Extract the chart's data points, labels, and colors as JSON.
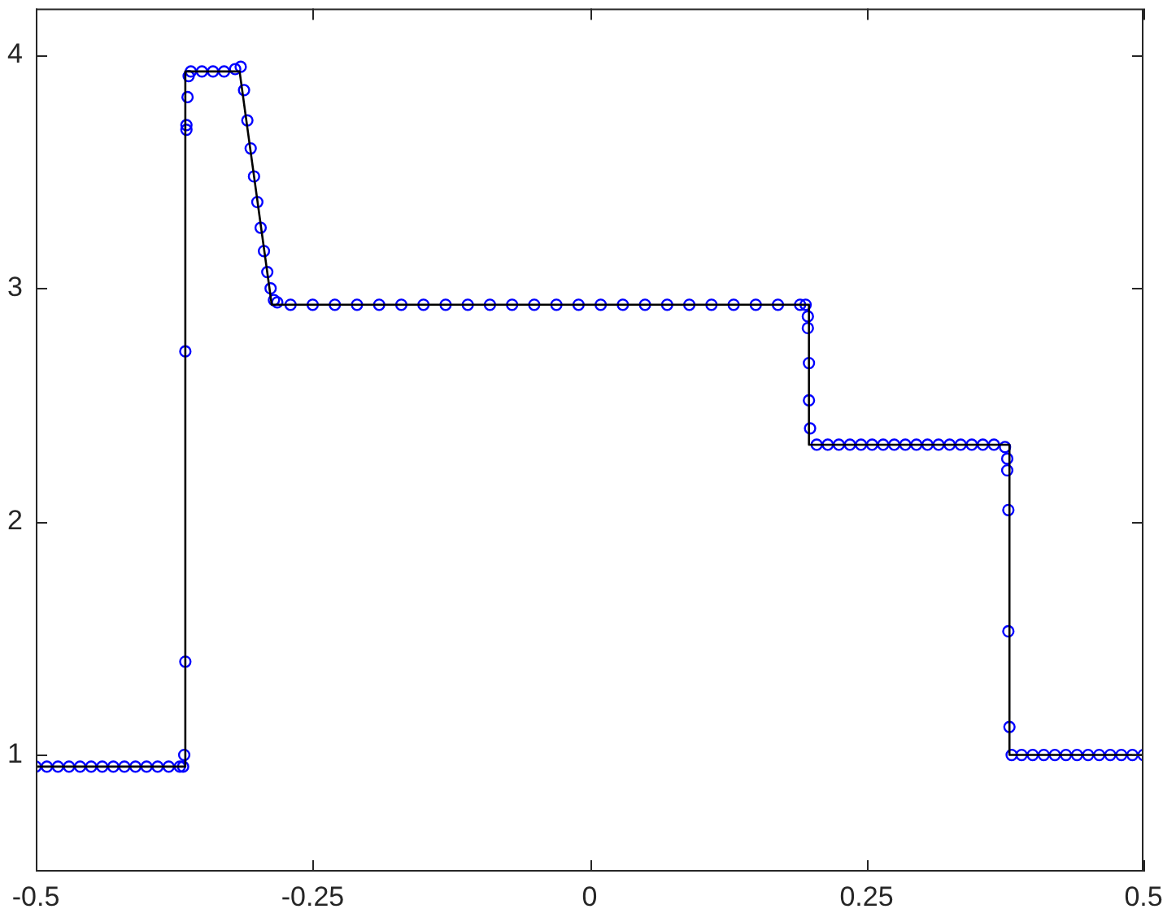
{
  "chart_data": {
    "type": "scatter",
    "xlim": [
      -0.5,
      0.5
    ],
    "ylim": [
      0.5,
      4.2
    ],
    "xticks": [
      -0.5,
      -0.25,
      0,
      0.25,
      0.5
    ],
    "yticks": [
      1,
      2,
      3,
      4
    ],
    "grid": false,
    "legend": false,
    "series": [
      {
        "type": "line",
        "color": "#000000",
        "marker": "none",
        "line_style": "solid",
        "x": [
          -0.5,
          -0.365,
          -0.365,
          -0.316,
          -0.287,
          0.198,
          0.198,
          0.379,
          0.379,
          0.5
        ],
        "values": [
          0.95,
          0.95,
          3.93,
          3.93,
          2.93,
          2.93,
          2.33,
          2.33,
          1.0,
          1.0
        ]
      },
      {
        "type": "scatter",
        "color": "#0000ff",
        "marker": "circle",
        "x": [
          -0.5,
          -0.49,
          -0.48,
          -0.47,
          -0.46,
          -0.45,
          -0.44,
          -0.43,
          -0.42,
          -0.41,
          -0.4,
          -0.39,
          -0.38,
          -0.37,
          -0.367,
          -0.366,
          -0.365,
          -0.365,
          -0.364,
          -0.364,
          -0.363,
          -0.362,
          -0.36,
          -0.35,
          -0.34,
          -0.33,
          -0.32,
          -0.315,
          -0.312,
          -0.309,
          -0.306,
          -0.303,
          -0.3,
          -0.297,
          -0.294,
          -0.291,
          -0.288,
          -0.285,
          -0.282,
          -0.27,
          -0.25,
          -0.23,
          -0.21,
          -0.19,
          -0.17,
          -0.15,
          -0.13,
          -0.11,
          -0.09,
          -0.07,
          -0.05,
          -0.03,
          -0.01,
          0.01,
          0.03,
          0.05,
          0.07,
          0.09,
          0.11,
          0.13,
          0.15,
          0.17,
          0.19,
          0.195,
          0.197,
          0.197,
          0.198,
          0.198,
          0.199,
          0.205,
          0.215,
          0.225,
          0.235,
          0.245,
          0.255,
          0.265,
          0.275,
          0.285,
          0.295,
          0.305,
          0.315,
          0.325,
          0.335,
          0.345,
          0.355,
          0.365,
          0.375,
          0.377,
          0.377,
          0.378,
          0.378,
          0.379,
          0.381,
          0.39,
          0.4,
          0.41,
          0.42,
          0.43,
          0.44,
          0.45,
          0.46,
          0.47,
          0.48,
          0.49,
          0.5
        ],
        "values": [
          0.95,
          0.95,
          0.95,
          0.95,
          0.95,
          0.95,
          0.95,
          0.95,
          0.95,
          0.95,
          0.95,
          0.95,
          0.95,
          0.95,
          0.95,
          1.0,
          1.4,
          2.73,
          3.68,
          3.7,
          3.82,
          3.91,
          3.93,
          3.93,
          3.93,
          3.93,
          3.94,
          3.95,
          3.85,
          3.72,
          3.6,
          3.48,
          3.37,
          3.26,
          3.16,
          3.07,
          3.0,
          2.95,
          2.94,
          2.93,
          2.93,
          2.93,
          2.93,
          2.93,
          2.93,
          2.93,
          2.93,
          2.93,
          2.93,
          2.93,
          2.93,
          2.93,
          2.93,
          2.93,
          2.93,
          2.93,
          2.93,
          2.93,
          2.93,
          2.93,
          2.93,
          2.93,
          2.93,
          2.93,
          2.88,
          2.83,
          2.68,
          2.52,
          2.4,
          2.33,
          2.33,
          2.33,
          2.33,
          2.33,
          2.33,
          2.33,
          2.33,
          2.33,
          2.33,
          2.33,
          2.33,
          2.33,
          2.33,
          2.33,
          2.33,
          2.33,
          2.32,
          2.27,
          2.22,
          2.05,
          1.53,
          1.12,
          1.0,
          1.0,
          1.0,
          1.0,
          1.0,
          1.0,
          1.0,
          1.0,
          1.0,
          1.0,
          1.0,
          1.0,
          1.0
        ]
      }
    ]
  }
}
